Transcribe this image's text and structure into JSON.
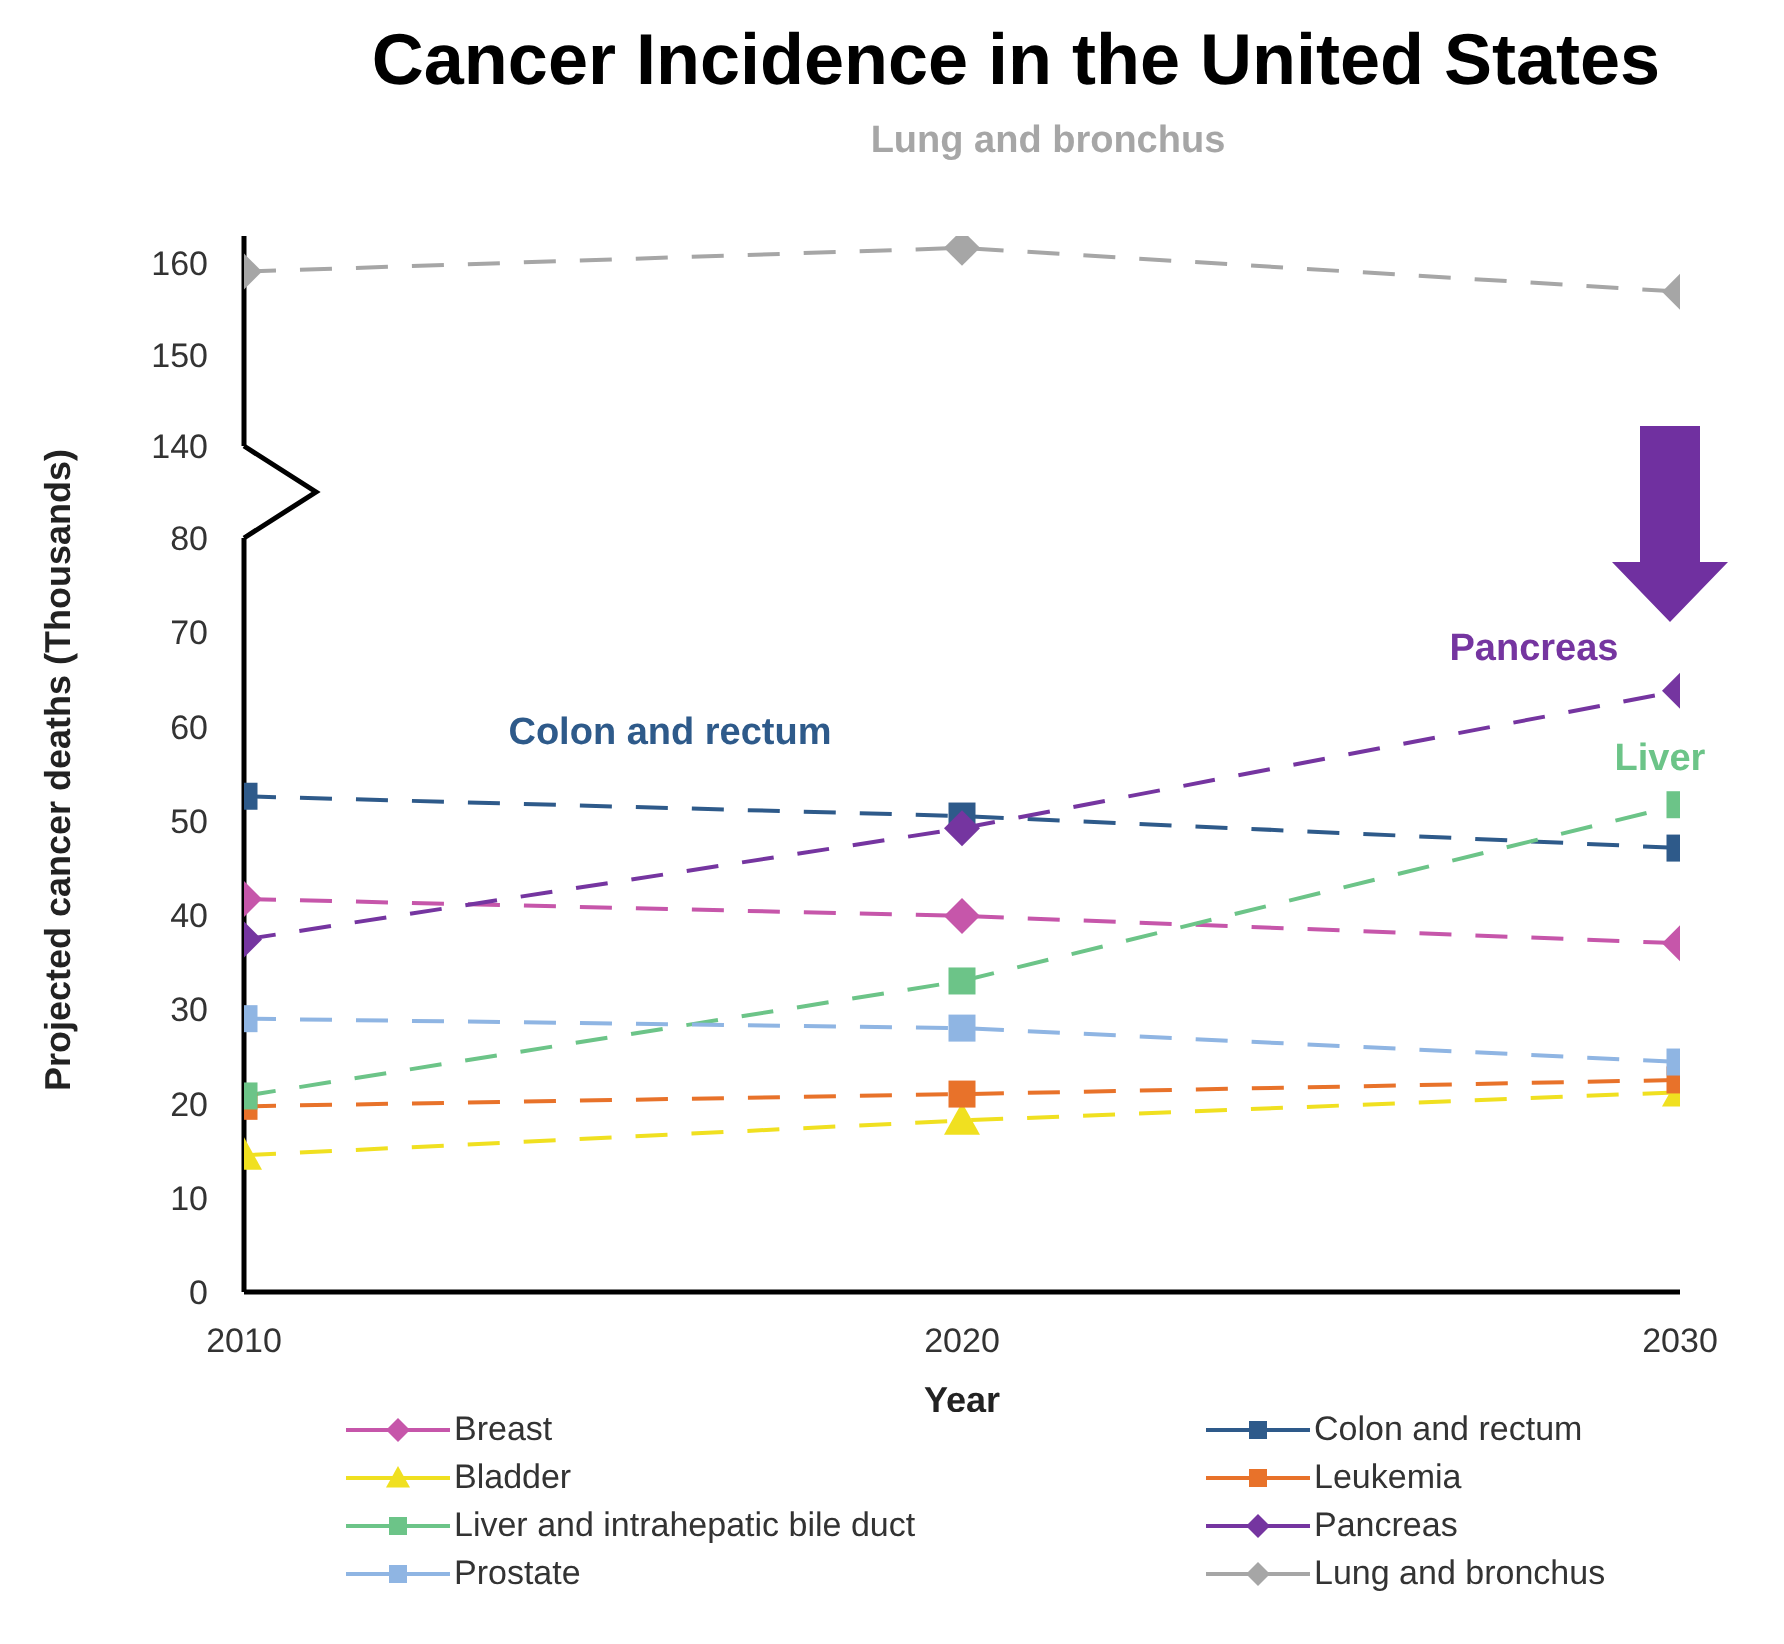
{
  "chart_data": [
    {
      "type": "line",
      "title": "Cancer Incidence in the United States",
      "x": [
        2010,
        2020,
        2030
      ],
      "xlim": [
        2010,
        2030
      ],
      "ylim": [
        140,
        163
      ],
      "yticks": [
        140,
        150,
        160
      ],
      "tick_labels": "y",
      "line_style": "dashed",
      "series": [
        {
          "name": "Lung and bronchus",
          "color": "#a6a6a6",
          "marker": "diamond",
          "values": [
            159.1,
            161.7,
            156.9
          ]
        }
      ],
      "annotations": [
        "Lung and bronchus"
      ]
    },
    {
      "type": "line",
      "xlabel": "Year",
      "ylabel": "Projected cancer deaths (Thousands)",
      "x": [
        2010,
        2020,
        2030
      ],
      "xlim": [
        2010,
        2030
      ],
      "xticks": [
        2010,
        2020,
        2030
      ],
      "ylim": [
        0,
        80
      ],
      "yticks": [
        0,
        10,
        20,
        30,
        40,
        50,
        60,
        70,
        80
      ],
      "line_style": "dashed",
      "legend": "bottom",
      "series": [
        {
          "name": "Breast",
          "color": "#c656aa",
          "marker": "diamond",
          "values": [
            41.7,
            39.9,
            37.0
          ]
        },
        {
          "name": "Colon and rectum",
          "color": "#2e5a8a",
          "marker": "square",
          "values": [
            52.6,
            50.5,
            47.1
          ]
        },
        {
          "name": "Bladder",
          "color": "#f0e020",
          "marker": "triangle",
          "values": [
            14.5,
            18.2,
            21.2
          ]
        },
        {
          "name": "Leukemia",
          "color": "#e8722a",
          "marker": "square",
          "values": [
            19.7,
            21.0,
            22.5
          ]
        },
        {
          "name": "Liver and intrahepatic bile duct",
          "color": "#6cc488",
          "marker": "square",
          "values": [
            20.8,
            33.0,
            51.7
          ]
        },
        {
          "name": "Pancreas",
          "color": "#7535a0",
          "marker": "diamond",
          "values": [
            37.4,
            49.2,
            63.8
          ]
        },
        {
          "name": "Prostate",
          "color": "#8fb5e3",
          "marker": "square",
          "values": [
            29.0,
            28.0,
            24.4
          ]
        }
      ],
      "annotations": [
        "Colon and rectum",
        "Pancreas",
        "Liver"
      ]
    }
  ]
}
